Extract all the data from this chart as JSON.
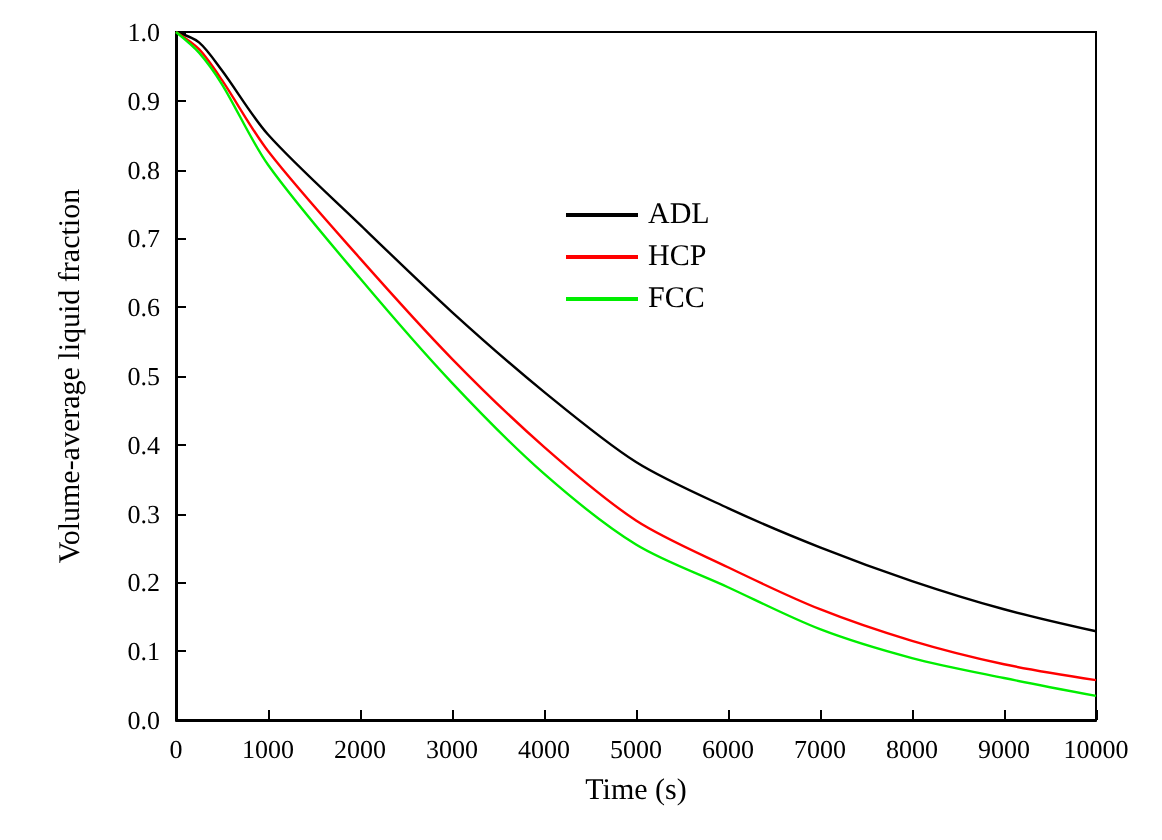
{
  "chart_data": {
    "type": "line",
    "xlabel": "Time (s)",
    "ylabel": "Volume-average liquid fraction",
    "x": [
      0,
      250,
      500,
      1000,
      2000,
      3000,
      4000,
      5000,
      6000,
      7000,
      8000,
      9000,
      10000
    ],
    "series": [
      {
        "name": "ADL",
        "color": "#000000",
        "values": [
          1.0,
          0.985,
          0.944,
          0.851,
          0.72,
          0.593,
          0.477,
          0.375,
          0.308,
          0.251,
          0.202,
          0.161,
          0.129
        ]
      },
      {
        "name": "HCP",
        "color": "#ff0000",
        "values": [
          1.0,
          0.975,
          0.93,
          0.827,
          0.671,
          0.525,
          0.397,
          0.29,
          0.222,
          0.161,
          0.115,
          0.081,
          0.058
        ]
      },
      {
        "name": "FCC",
        "color": "#00ee00",
        "values": [
          1.0,
          0.97,
          0.924,
          0.807,
          0.642,
          0.49,
          0.358,
          0.255,
          0.193,
          0.132,
          0.09,
          0.061,
          0.035
        ]
      }
    ],
    "xlim": [
      0,
      10000
    ],
    "xticks": [
      0,
      1000,
      2000,
      3000,
      4000,
      5000,
      6000,
      7000,
      8000,
      9000,
      10000
    ],
    "ylim": [
      0,
      1.0
    ],
    "yticks": [
      {
        "value": 0,
        "label": "0.0"
      },
      0.1,
      0.2,
      0.3,
      0.4,
      0.5,
      0.6,
      0.7,
      0.8,
      0.9,
      {
        "value": 1,
        "label": "1.0"
      }
    ],
    "grid": false,
    "legend": "top right",
    "marker": "none",
    "line_style": "solid"
  }
}
